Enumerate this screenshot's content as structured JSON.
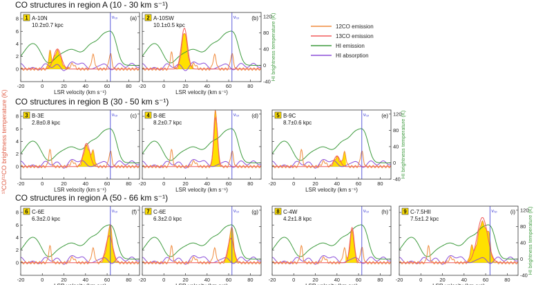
{
  "figure": {
    "rows": [
      {
        "title": "CO structures in region A (10 - 30 km s⁻¹)"
      },
      {
        "title": "CO structures in region B (30 - 50 km s⁻¹)"
      },
      {
        "title": "CO structures in region A (50 - 66 km s⁻¹)"
      }
    ],
    "left_axis_label": "¹³CO/¹²CO brightness temperature (K)",
    "right_axis_label": "HI brightness temperature (K)",
    "xlabel": "LSR velocity (km s⁻¹)",
    "vtp_label": "vₜₚ",
    "legend": [
      {
        "label": "12CO emission",
        "color": "#f08a3c"
      },
      {
        "label": "13CO emission",
        "color": "#f25a5a"
      },
      {
        "label": "HI emission",
        "color": "#3c9a3c"
      },
      {
        "label": "HI absorption",
        "color": "#8a4cd8"
      }
    ],
    "colors": {
      "fill": "#ffe000",
      "vtp": "#4a4ad8",
      "axis": "#333333"
    }
  },
  "chart_data": [
    {
      "type": "line",
      "panel": "a",
      "row": 0,
      "col": 0,
      "num": "1",
      "name": "A-10N",
      "distance": "10.2±0.7 kpc",
      "peak": 14,
      "amp": 3.2,
      "width": 3.5,
      "vtp": 63,
      "xlim": [
        -20,
        90
      ],
      "ylim_left": [
        -2,
        9
      ],
      "ylim_right": [
        -40,
        130
      ],
      "xticks": [
        -20,
        0,
        20,
        40,
        60,
        80
      ],
      "yticks_left": [
        0,
        2,
        4,
        6,
        8
      ],
      "yticks_right": [
        -40,
        0,
        40,
        80,
        120
      ],
      "show_left": true,
      "show_right": false
    },
    {
      "type": "line",
      "panel": "b",
      "row": 0,
      "col": 1,
      "num": "2",
      "name": "A-10SW",
      "distance": "10.1±0.5 kpc",
      "peak": 19,
      "amp": 6.5,
      "width": 2.8,
      "vtp": 63,
      "xlim": [
        -20,
        90
      ],
      "ylim_left": [
        -2,
        9
      ],
      "ylim_right": [
        -40,
        130
      ],
      "xticks": [
        -20,
        0,
        20,
        40,
        60,
        80
      ],
      "yticks_left": [
        0,
        2,
        4,
        6,
        8
      ],
      "yticks_right": [
        -40,
        0,
        40,
        80,
        120
      ],
      "show_left": false,
      "show_right": true
    },
    {
      "type": "line",
      "panel": "c",
      "row": 1,
      "col": 0,
      "num": "3",
      "name": "B-3E",
      "distance": "2.8±0.8 kpc",
      "peak": 41,
      "amp": 3.7,
      "width": 3.0,
      "vtp": 63,
      "xlim": [
        -20,
        90
      ],
      "ylim_left": [
        -2,
        9
      ],
      "ylim_right": [
        -40,
        130
      ],
      "xticks": [
        -20,
        0,
        20,
        40,
        60,
        80
      ],
      "yticks_left": [
        0,
        2,
        4,
        6,
        8
      ],
      "yticks_right": [
        -40,
        0,
        40,
        80,
        120
      ],
      "show_left": true,
      "show_right": false
    },
    {
      "type": "line",
      "panel": "d",
      "row": 1,
      "col": 1,
      "num": "4",
      "name": "B-8E",
      "distance": "8.2±0.7 kpc",
      "peak": 48,
      "amp": 7.8,
      "width": 1.8,
      "vtp": 63,
      "xlim": [
        -20,
        90
      ],
      "ylim_left": [
        -2,
        9
      ],
      "ylim_right": [
        -40,
        130
      ],
      "xticks": [
        -20,
        0,
        20,
        40,
        60,
        80
      ],
      "yticks_left": [
        0,
        2,
        4,
        6,
        8
      ],
      "yticks_right": [
        -40,
        0,
        40,
        80,
        120
      ],
      "show_left": false,
      "show_right": false
    },
    {
      "type": "line",
      "panel": "e",
      "row": 1,
      "col": 2,
      "num": "5",
      "name": "B-9C",
      "distance": "8.7±0.6 kpc",
      "peak": 40,
      "amp": 1.7,
      "width": 2.8,
      "vtp": 63,
      "xlim": [
        -20,
        90
      ],
      "ylim_left": [
        -2,
        9
      ],
      "ylim_right": [
        -40,
        130
      ],
      "xticks": [
        -20,
        0,
        20,
        40,
        60,
        80
      ],
      "yticks_left": [
        0,
        2,
        4,
        6,
        8
      ],
      "yticks_right": [
        -40,
        0,
        40,
        80,
        120
      ],
      "show_left": false,
      "show_right": true
    },
    {
      "type": "line",
      "panel": "f",
      "row": 2,
      "col": 0,
      "num": "6",
      "name": "C-6E",
      "distance": "6.3±2.0 kpc",
      "peak": 62,
      "amp": 4.3,
      "width": 3.2,
      "vtp": 63,
      "xlim": [
        -20,
        90
      ],
      "ylim_left": [
        -2,
        9
      ],
      "ylim_right": [
        -40,
        130
      ],
      "xticks": [
        -20,
        0,
        20,
        40,
        60,
        80
      ],
      "yticks_left": [
        0,
        2,
        4,
        6,
        8
      ],
      "yticks_right": [
        -40,
        0,
        40,
        80,
        120
      ],
      "show_left": true,
      "show_right": false
    },
    {
      "type": "line",
      "panel": "g",
      "row": 2,
      "col": 1,
      "num": "7",
      "name": "C-6E",
      "distance": "6.3±2.0 kpc",
      "peak": 62,
      "amp": 3.9,
      "width": 2.8,
      "vtp": 63,
      "xlim": [
        -20,
        90
      ],
      "ylim_left": [
        -2,
        9
      ],
      "ylim_right": [
        -40,
        130
      ],
      "xticks": [
        -20,
        0,
        20,
        40,
        60,
        80
      ],
      "yticks_left": [
        0,
        2,
        4,
        6,
        8
      ],
      "yticks_right": [
        -40,
        0,
        40,
        80,
        120
      ],
      "show_left": false,
      "show_right": false
    },
    {
      "type": "line",
      "panel": "h",
      "row": 2,
      "col": 2,
      "num": "8",
      "name": "C-4W",
      "distance": "4.2±1.8 kpc",
      "peak": 54,
      "amp": 5.6,
      "width": 2.0,
      "vtp": 63,
      "xlim": [
        -20,
        90
      ],
      "ylim_left": [
        -2,
        9
      ],
      "ylim_right": [
        -40,
        130
      ],
      "xticks": [
        -20,
        0,
        20,
        40,
        60,
        80
      ],
      "yticks_left": [
        0,
        2,
        4,
        6,
        8
      ],
      "yticks_right": [
        -40,
        0,
        40,
        80,
        120
      ],
      "show_left": false,
      "show_right": false
    },
    {
      "type": "line",
      "panel": "i",
      "row": 2,
      "col": 3,
      "num": "9",
      "name": "C-7.5HII",
      "distance": "7.5±1.2 kpc",
      "peak": 57,
      "amp": 7.2,
      "width": 4.8,
      "vtp": 64,
      "xlim": [
        -20,
        90
      ],
      "ylim_left": [
        -2,
        9
      ],
      "ylim_right": [
        -40,
        130
      ],
      "xticks": [
        -20,
        0,
        20,
        40,
        60,
        80
      ],
      "yticks_left": [
        0,
        2,
        4,
        6,
        8
      ],
      "yticks_right": [
        -40,
        0,
        40,
        80,
        120
      ],
      "show_left": false,
      "show_right": true
    }
  ]
}
